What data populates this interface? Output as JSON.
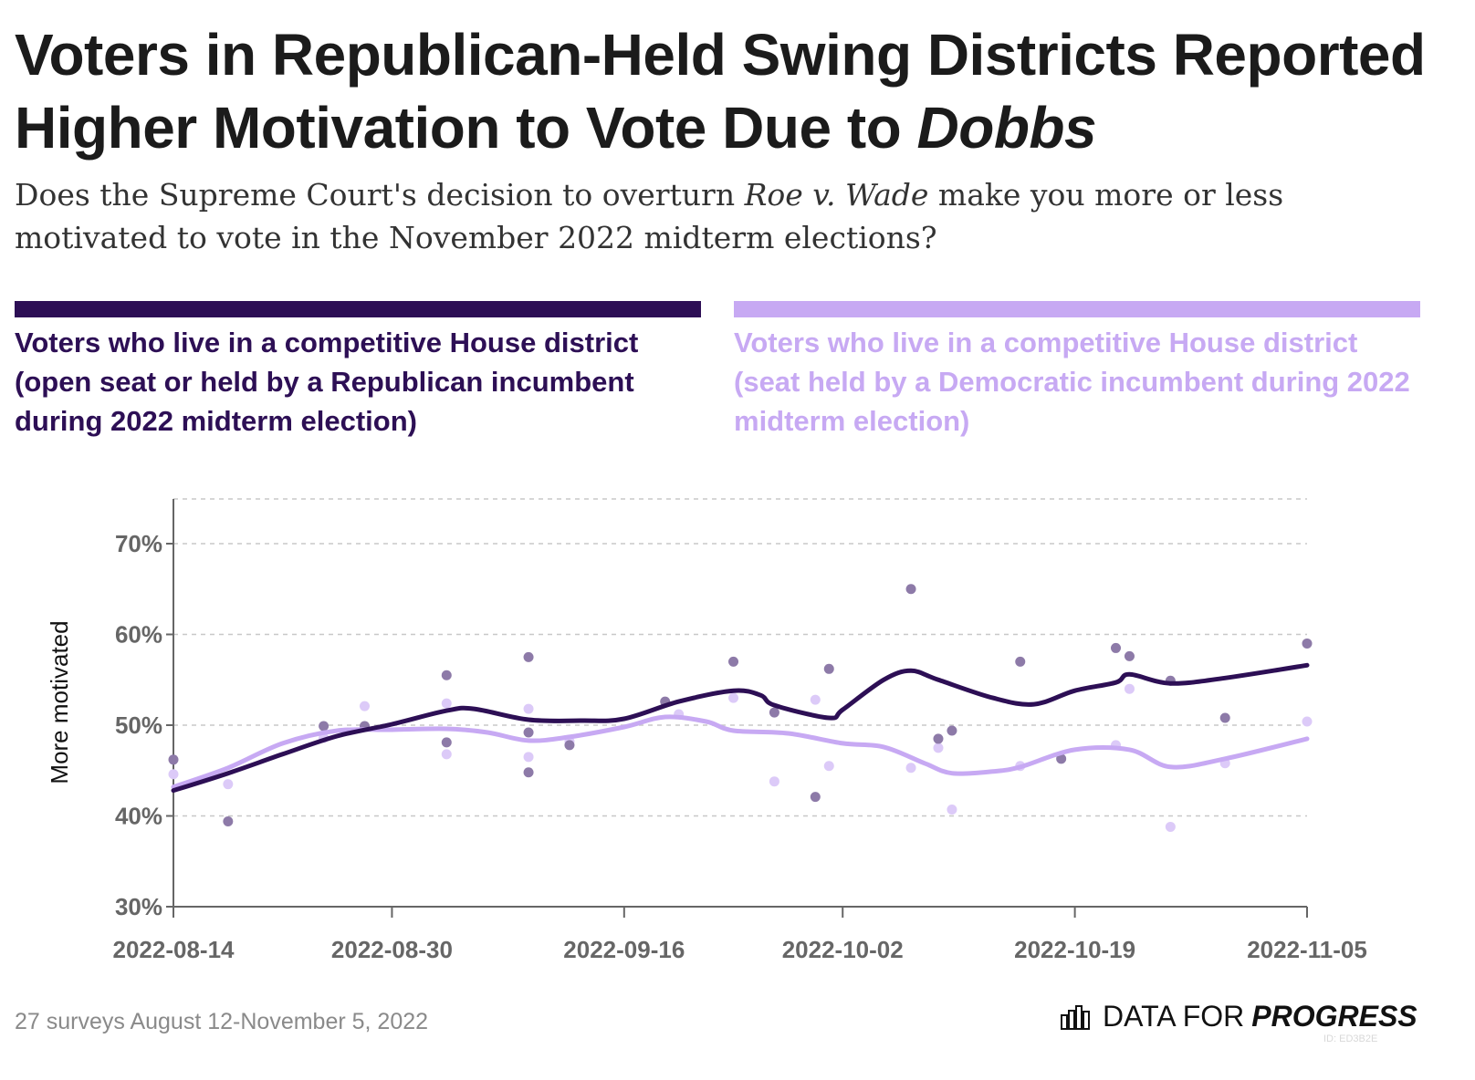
{
  "header": {
    "title_line1": "Voters in Republican-Held Swing Districts Reported",
    "title_line2_prefix": "Higher Motivation to Vote Due to ",
    "title_line2_em": "Dobbs",
    "subtitle_part1": "Does the Supreme Court's decision to overturn ",
    "subtitle_em": "Roe v. Wade",
    "subtitle_part2": " make you more or less motivated to vote in the November 2022 midterm elections?"
  },
  "legend": {
    "republican_label": "Voters who live in a competitive House district (open seat or held by a Republican incumbent during 2022 midterm election)",
    "democratic_label": "Voters who live in a competitive House district (seat held by a Democratic incumbent during 2022 midterm election)"
  },
  "colors": {
    "republican": "#2d0f55",
    "democratic": "#c7a9f3",
    "republican_point": "#8d7aa8",
    "democratic_point": "#dccaf8",
    "axis": "#666666",
    "grid": "#c8c8c8"
  },
  "chart_data": {
    "type": "scatter",
    "ylabel": "More motivated",
    "ylim": [
      30,
      75
    ],
    "yticks": [
      30,
      40,
      50,
      60,
      70
    ],
    "ytick_labels": [
      "30%",
      "40%",
      "50%",
      "60%",
      "70%"
    ],
    "xlim": [
      "2022-08-14",
      "2022-11-05"
    ],
    "xticks": [
      "2022-08-14",
      "2022-08-30",
      "2022-09-16",
      "2022-10-02",
      "2022-10-19",
      "2022-11-05"
    ],
    "grid": true,
    "series": [
      {
        "name": "Voters who live in a competitive House district (open seat or held by a Republican incumbent during 2022 midterm election)",
        "points": [
          [
            "2022-08-14",
            46.2
          ],
          [
            "2022-08-18",
            39.4
          ],
          [
            "2022-08-25",
            49.9
          ],
          [
            "2022-08-28",
            49.9
          ],
          [
            "2022-09-03",
            55.5
          ],
          [
            "2022-09-03",
            48.1
          ],
          [
            "2022-09-09",
            57.5
          ],
          [
            "2022-09-09",
            49.2
          ],
          [
            "2022-09-09",
            44.8
          ],
          [
            "2022-09-12",
            47.8
          ],
          [
            "2022-09-19",
            52.6
          ],
          [
            "2022-09-24",
            57.0
          ],
          [
            "2022-09-27",
            51.4
          ],
          [
            "2022-09-30",
            42.1
          ],
          [
            "2022-10-01",
            56.2
          ],
          [
            "2022-10-07",
            65.0
          ],
          [
            "2022-10-09",
            48.5
          ],
          [
            "2022-10-10",
            49.4
          ],
          [
            "2022-10-15",
            57.0
          ],
          [
            "2022-10-18",
            46.3
          ],
          [
            "2022-10-22",
            58.5
          ],
          [
            "2022-10-23",
            57.6
          ],
          [
            "2022-10-26",
            54.9
          ],
          [
            "2022-10-30",
            50.8
          ],
          [
            "2022-11-05",
            59.0
          ]
        ],
        "trend": [
          [
            "2022-08-14",
            42.8
          ],
          [
            "2022-08-18",
            44.7
          ],
          [
            "2022-08-22",
            46.8
          ],
          [
            "2022-08-26",
            48.8
          ],
          [
            "2022-08-30",
            50.1
          ],
          [
            "2022-09-03",
            51.6
          ],
          [
            "2022-09-05",
            51.8
          ],
          [
            "2022-09-09",
            50.6
          ],
          [
            "2022-09-13",
            50.5
          ],
          [
            "2022-09-16",
            50.7
          ],
          [
            "2022-09-20",
            52.6
          ],
          [
            "2022-09-24",
            53.8
          ],
          [
            "2022-09-26",
            53.3
          ],
          [
            "2022-09-27",
            52.2
          ],
          [
            "2022-10-01",
            50.8
          ],
          [
            "2022-10-02",
            51.7
          ],
          [
            "2022-10-05",
            55.0
          ],
          [
            "2022-10-07",
            56.0
          ],
          [
            "2022-10-09",
            55.0
          ],
          [
            "2022-10-13",
            53.0
          ],
          [
            "2022-10-16",
            52.3
          ],
          [
            "2022-10-19",
            53.8
          ],
          [
            "2022-10-22",
            54.7
          ],
          [
            "2022-10-23",
            55.6
          ],
          [
            "2022-10-26",
            54.6
          ],
          [
            "2022-10-30",
            55.2
          ],
          [
            "2022-11-05",
            56.6
          ]
        ]
      },
      {
        "name": "Voters who live in a competitive House district (seat held by a Democratic incumbent during 2022 midterm election)",
        "points": [
          [
            "2022-08-14",
            44.6
          ],
          [
            "2022-08-18",
            43.5
          ],
          [
            "2022-08-25",
            48.6
          ],
          [
            "2022-08-28",
            52.1
          ],
          [
            "2022-09-03",
            52.4
          ],
          [
            "2022-09-03",
            46.8
          ],
          [
            "2022-09-09",
            51.8
          ],
          [
            "2022-09-09",
            46.5
          ],
          [
            "2022-09-12",
            48.2
          ],
          [
            "2022-09-20",
            51.2
          ],
          [
            "2022-09-24",
            53.0
          ],
          [
            "2022-09-27",
            43.8
          ],
          [
            "2022-09-30",
            52.8
          ],
          [
            "2022-10-01",
            45.5
          ],
          [
            "2022-10-07",
            45.3
          ],
          [
            "2022-10-09",
            47.5
          ],
          [
            "2022-10-10",
            40.7
          ],
          [
            "2022-10-15",
            45.5
          ],
          [
            "2022-10-22",
            47.8
          ],
          [
            "2022-10-23",
            54.0
          ],
          [
            "2022-10-26",
            38.8
          ],
          [
            "2022-10-30",
            45.8
          ],
          [
            "2022-11-05",
            50.4
          ]
        ],
        "trend": [
          [
            "2022-08-14",
            43.2
          ],
          [
            "2022-08-18",
            45.3
          ],
          [
            "2022-08-22",
            48.0
          ],
          [
            "2022-08-26",
            49.4
          ],
          [
            "2022-08-30",
            49.5
          ],
          [
            "2022-09-03",
            49.6
          ],
          [
            "2022-09-06",
            49.2
          ],
          [
            "2022-09-09",
            48.3
          ],
          [
            "2022-09-12",
            48.7
          ],
          [
            "2022-09-16",
            49.8
          ],
          [
            "2022-09-19",
            50.9
          ],
          [
            "2022-09-22",
            50.4
          ],
          [
            "2022-09-24",
            49.4
          ],
          [
            "2022-09-28",
            49.1
          ],
          [
            "2022-10-02",
            48.0
          ],
          [
            "2022-10-05",
            47.6
          ],
          [
            "2022-10-08",
            45.8
          ],
          [
            "2022-10-10",
            44.7
          ],
          [
            "2022-10-13",
            44.9
          ],
          [
            "2022-10-15",
            45.4
          ],
          [
            "2022-10-19",
            47.3
          ],
          [
            "2022-10-23",
            47.3
          ],
          [
            "2022-10-26",
            45.4
          ],
          [
            "2022-10-30",
            46.3
          ],
          [
            "2022-11-05",
            48.5
          ]
        ]
      }
    ]
  },
  "footer": {
    "note": "27 surveys August 12-November 5, 2022",
    "brand_light": "DATA FOR",
    "brand_strong": "PROGRESS",
    "brand_id": "ID: ED3B2E"
  }
}
